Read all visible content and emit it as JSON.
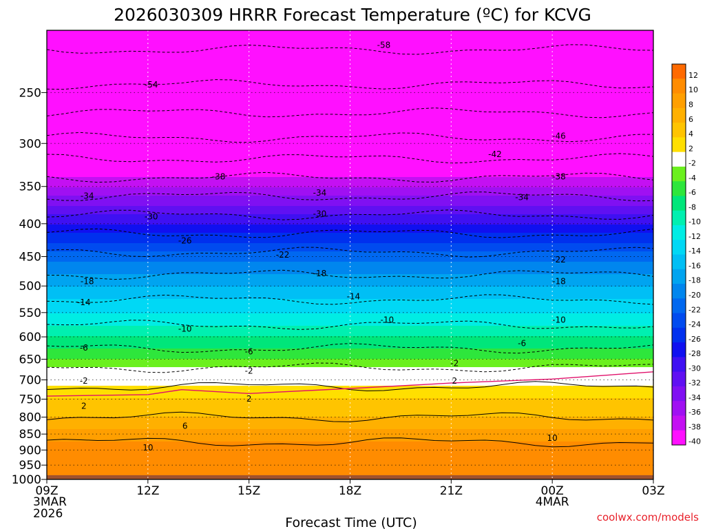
{
  "chart_data": {
    "type": "heatmap",
    "title": "2026030309 HRRR Forecast Temperature (ºC) for KCVG",
    "xlabel": "Forecast Time (UTC)",
    "ylabel": "",
    "x_ticks": [
      {
        "hour": 0,
        "label": "09Z",
        "sub": [
          "3MAR",
          "2026"
        ]
      },
      {
        "hour": 3,
        "label": "12Z",
        "sub": []
      },
      {
        "hour": 6,
        "label": "15Z",
        "sub": []
      },
      {
        "hour": 9,
        "label": "18Z",
        "sub": []
      },
      {
        "hour": 12,
        "label": "21Z",
        "sub": []
      },
      {
        "hour": 15,
        "label": "00Z",
        "sub": [
          "4MAR"
        ]
      },
      {
        "hour": 18,
        "label": "03Z",
        "sub": []
      }
    ],
    "xlim": [
      0,
      18
    ],
    "y_ticks": [
      250,
      300,
      350,
      400,
      450,
      500,
      550,
      600,
      650,
      700,
      750,
      800,
      850,
      900,
      950,
      1000
    ],
    "ylim_hPa": [
      1000,
      200
    ],
    "y_scale": "log-pressure",
    "surface_pressure_hPa": 985,
    "freezing_line_hPa": [
      [
        0,
        742
      ],
      [
        3,
        738
      ],
      [
        4,
        725
      ],
      [
        6,
        735
      ],
      [
        9,
        722
      ],
      [
        12,
        708
      ],
      [
        15,
        698
      ],
      [
        18,
        680
      ]
    ],
    "profile_hPa": [
      200,
      250,
      300,
      350,
      400,
      450,
      500,
      550,
      600,
      650,
      700,
      750,
      800,
      850,
      900,
      950,
      985
    ],
    "profile_temp_C": [
      -60,
      -53,
      -45,
      -36,
      -28,
      -21,
      -16,
      -12,
      -8,
      -4,
      1,
      4,
      6,
      9,
      11,
      12,
      11
    ],
    "contours_C": [
      -58,
      -54,
      -50,
      -46,
      -42,
      -38,
      -34,
      -30,
      -26,
      -22,
      -18,
      -14,
      -10,
      -6,
      -2,
      2,
      6,
      10
    ],
    "contour_labels": [
      {
        "value": "-58",
        "hour": 10.0,
        "p": 211
      },
      {
        "value": "-54",
        "hour": 3.1,
        "p": 243
      },
      {
        "value": "-46",
        "hour": 15.2,
        "p": 292
      },
      {
        "value": "-42",
        "hour": 13.3,
        "p": 312
      },
      {
        "value": "-38",
        "hour": 5.1,
        "p": 338
      },
      {
        "value": "-38",
        "hour": 15.2,
        "p": 338
      },
      {
        "value": "-34",
        "hour": 1.2,
        "p": 362
      },
      {
        "value": "-34",
        "hour": 8.1,
        "p": 358
      },
      {
        "value": "-34",
        "hour": 14.1,
        "p": 364
      },
      {
        "value": "-30",
        "hour": 3.1,
        "p": 390
      },
      {
        "value": "-30",
        "hour": 8.1,
        "p": 386
      },
      {
        "value": "-26",
        "hour": 4.1,
        "p": 425
      },
      {
        "value": "-22",
        "hour": 7.0,
        "p": 447
      },
      {
        "value": "-22",
        "hour": 15.2,
        "p": 455
      },
      {
        "value": "-18",
        "hour": 1.2,
        "p": 492
      },
      {
        "value": "-18",
        "hour": 8.1,
        "p": 478
      },
      {
        "value": "-18",
        "hour": 15.2,
        "p": 492
      },
      {
        "value": "-14",
        "hour": 1.1,
        "p": 530
      },
      {
        "value": "-14",
        "hour": 9.1,
        "p": 519
      },
      {
        "value": "-10",
        "hour": 4.1,
        "p": 583
      },
      {
        "value": "-10",
        "hour": 10.1,
        "p": 565
      },
      {
        "value": "-10",
        "hour": 15.2,
        "p": 565
      },
      {
        "value": "-6",
        "hour": 1.1,
        "p": 624
      },
      {
        "value": "-6",
        "hour": 6.0,
        "p": 633
      },
      {
        "value": "-6",
        "hour": 14.1,
        "p": 614
      },
      {
        "value": "-2",
        "hour": 6.0,
        "p": 678
      },
      {
        "value": "-2",
        "hour": 12.1,
        "p": 660
      },
      {
        "value": "-2",
        "hour": 1.1,
        "p": 703
      },
      {
        "value": "2",
        "hour": 1.1,
        "p": 769
      },
      {
        "value": "2",
        "hour": 6.0,
        "p": 749
      },
      {
        "value": "2",
        "hour": 12.1,
        "p": 703
      },
      {
        "value": "6",
        "hour": 4.1,
        "p": 826
      },
      {
        "value": "10",
        "hour": 3.0,
        "p": 893
      },
      {
        "value": "10",
        "hour": 15.0,
        "p": 862
      }
    ],
    "colorbar": {
      "labels": [
        "12",
        "10",
        "8",
        "6",
        "4",
        "2",
        "-2",
        "-4",
        "-6",
        "-8",
        "-10",
        "-12",
        "-14",
        "-16",
        "-18",
        "-20",
        "-22",
        "-24",
        "-26",
        "-28",
        "-30",
        "-32",
        "-34",
        "-36",
        "-38",
        "-40"
      ],
      "segment_colors": [
        "#ff6a00",
        "#ff8c00",
        "#ff9f00",
        "#ffb000",
        "#ffc400",
        "#ffdf00",
        "#ffffff",
        "#6bf01e",
        "#2ee63c",
        "#00e67a",
        "#00f0b0",
        "#00ede4",
        "#00d8f5",
        "#00bff5",
        "#00a4f0",
        "#0086ee",
        "#0068f0",
        "#004bef",
        "#0030ee",
        "#1010f0",
        "#3f10f2",
        "#6010f2",
        "#8010f2",
        "#a010f2",
        "#c410f2",
        "#ff10ff"
      ]
    },
    "grid": true,
    "colors": {
      "surface": "#a0522d",
      "freezing_line": "#e0106a",
      "frame": "#000000"
    }
  },
  "footer": {
    "credit": "coolwx.com/models"
  }
}
